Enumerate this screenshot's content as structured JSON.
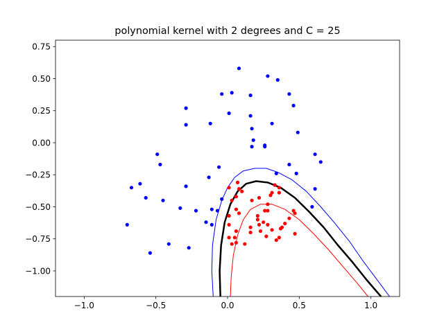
{
  "chart_data": {
    "type": "scatter",
    "title": "polynomial kernel with 2 degrees and C = 25",
    "xlabel": "",
    "ylabel": "",
    "xlim": [
      -1.2,
      1.2
    ],
    "ylim": [
      -1.2,
      0.8
    ],
    "x_ticks": [
      -1.0,
      -0.5,
      0.0,
      0.5,
      1.0
    ],
    "x_tick_labels": [
      "−1.0",
      "−0.5",
      "0.0",
      "0.5",
      "1.0"
    ],
    "y_ticks": [
      0.75,
      0.5,
      0.25,
      0.0,
      -0.25,
      -0.5,
      -0.75,
      -1.0
    ],
    "y_tick_labels": [
      "0.75",
      "0.50",
      "0.25",
      "0.00",
      "−0.25",
      "−0.50",
      "−0.75",
      "−1.00"
    ],
    "grid": false,
    "colors": {
      "class_1": "#0000ff",
      "class_2": "#ff0000",
      "boundary": "#000000"
    },
    "series": [
      {
        "color": "#0000ff",
        "points": [
          [
            0.08,
            0.58
          ],
          [
            0.28,
            0.52
          ],
          [
            0.35,
            0.49
          ],
          [
            -0.04,
            0.38
          ],
          [
            0.03,
            0.39
          ],
          [
            0.16,
            0.37
          ],
          [
            0.43,
            0.38
          ],
          [
            0.46,
            0.29
          ],
          [
            -0.29,
            0.27
          ],
          [
            0.01,
            0.23
          ],
          [
            0.16,
            0.21
          ],
          [
            -0.29,
            0.14
          ],
          [
            -0.12,
            0.15
          ],
          [
            0.31,
            0.15
          ],
          [
            0.17,
            0.11
          ],
          [
            0.49,
            0.08
          ],
          [
            0.18,
            0.02
          ],
          [
            0.26,
            -0.02
          ],
          [
            0.26,
            -0.03
          ],
          [
            0.17,
            -0.03
          ],
          [
            -0.49,
            -0.09
          ],
          [
            0.61,
            -0.09
          ],
          [
            -0.47,
            -0.17
          ],
          [
            0.43,
            -0.17
          ],
          [
            0.65,
            -0.15
          ],
          [
            -0.06,
            -0.19
          ],
          [
            0.34,
            -0.24
          ],
          [
            0.48,
            -0.24
          ],
          [
            -0.13,
            -0.27
          ],
          [
            -0.61,
            -0.32
          ],
          [
            -0.67,
            -0.35
          ],
          [
            -0.29,
            -0.34
          ],
          [
            0.61,
            -0.36
          ],
          [
            -0.57,
            -0.43
          ],
          [
            -0.45,
            -0.45
          ],
          [
            -0.04,
            -0.44
          ],
          [
            -0.33,
            -0.51
          ],
          [
            0.59,
            -0.5
          ],
          [
            -0.22,
            -0.53
          ],
          [
            -0.11,
            -0.52
          ],
          [
            -0.07,
            -0.53
          ],
          [
            -0.15,
            -0.62
          ],
          [
            -0.11,
            -0.64
          ],
          [
            -0.7,
            -0.64
          ],
          [
            -0.41,
            -0.79
          ],
          [
            -0.27,
            -0.82
          ],
          [
            -0.54,
            -0.86
          ]
        ]
      },
      {
        "color": "#ff0000",
        "points": [
          [
            0.07,
            -0.31
          ],
          [
            0.01,
            -0.35
          ],
          [
            0.08,
            -0.36
          ],
          [
            0.1,
            -0.38
          ],
          [
            0.33,
            -0.33
          ],
          [
            0.36,
            -0.35
          ],
          [
            0.31,
            -0.39
          ],
          [
            0.3,
            -0.41
          ],
          [
            0.36,
            -0.39
          ],
          [
            0.06,
            -0.42
          ],
          [
            0.03,
            -0.45
          ],
          [
            0.17,
            -0.45
          ],
          [
            0.22,
            -0.43
          ],
          [
            0.28,
            -0.48
          ],
          [
            0.06,
            -0.52
          ],
          [
            0.26,
            -0.53
          ],
          [
            0.28,
            -0.53
          ],
          [
            0.46,
            -0.53
          ],
          [
            0.47,
            -0.55
          ],
          [
            0.01,
            -0.57
          ],
          [
            0.08,
            -0.55
          ],
          [
            0.21,
            -0.57
          ],
          [
            0.21,
            -0.6
          ],
          [
            0.43,
            -0.59
          ],
          [
            0.25,
            -0.62
          ],
          [
            0.4,
            -0.63
          ],
          [
            0.01,
            -0.64
          ],
          [
            0.22,
            -0.64
          ],
          [
            0.28,
            -0.64
          ],
          [
            0.38,
            -0.66
          ],
          [
            0.06,
            -0.69
          ],
          [
            0.16,
            -0.66
          ],
          [
            0.37,
            -0.67
          ],
          [
            0.31,
            -0.68
          ],
          [
            0.23,
            -0.69
          ],
          [
            0.16,
            -0.7
          ],
          [
            0.47,
            -0.71
          ],
          [
            0.27,
            -0.73
          ],
          [
            0.36,
            -0.74
          ],
          [
            0.05,
            -0.74
          ],
          [
            0.01,
            -0.74
          ],
          [
            0.34,
            -0.76
          ],
          [
            0.06,
            -0.78
          ],
          [
            0.03,
            -0.79
          ],
          [
            0.12,
            -0.79
          ]
        ]
      }
    ],
    "curves": [
      {
        "color": "#0000ff",
        "style": "thin",
        "points": [
          [
            -0.1,
            -1.2
          ],
          [
            -0.11,
            -1.0
          ],
          [
            -0.105,
            -0.8
          ],
          [
            -0.08,
            -0.6
          ],
          [
            -0.04,
            -0.45
          ],
          [
            0.0,
            -0.35
          ],
          [
            0.05,
            -0.27
          ],
          [
            0.11,
            -0.22
          ],
          [
            0.19,
            -0.2
          ],
          [
            0.27,
            -0.2
          ],
          [
            0.35,
            -0.23
          ],
          [
            0.45,
            -0.29
          ],
          [
            0.55,
            -0.38
          ],
          [
            0.65,
            -0.5
          ],
          [
            0.75,
            -0.63
          ],
          [
            0.85,
            -0.77
          ],
          [
            0.95,
            -0.93
          ],
          [
            1.05,
            -1.08
          ],
          [
            1.13,
            -1.2
          ]
        ]
      },
      {
        "color": "#000000",
        "style": "bold",
        "points": [
          [
            -0.05,
            -1.2
          ],
          [
            -0.055,
            -1.0
          ],
          [
            -0.045,
            -0.8
          ],
          [
            -0.02,
            -0.62
          ],
          [
            0.02,
            -0.48
          ],
          [
            0.07,
            -0.38
          ],
          [
            0.13,
            -0.32
          ],
          [
            0.2,
            -0.3
          ],
          [
            0.28,
            -0.31
          ],
          [
            0.37,
            -0.35
          ],
          [
            0.47,
            -0.43
          ],
          [
            0.57,
            -0.54
          ],
          [
            0.67,
            -0.66
          ],
          [
            0.77,
            -0.8
          ],
          [
            0.87,
            -0.93
          ],
          [
            0.97,
            -1.07
          ],
          [
            1.07,
            -1.2
          ]
        ]
      },
      {
        "color": "#ff0000",
        "style": "thin",
        "points": [
          [
            0.02,
            -1.2
          ],
          [
            0.025,
            -1.05
          ],
          [
            0.04,
            -0.88
          ],
          [
            0.07,
            -0.72
          ],
          [
            0.11,
            -0.6
          ],
          [
            0.16,
            -0.52
          ],
          [
            0.23,
            -0.48
          ],
          [
            0.31,
            -0.48
          ],
          [
            0.4,
            -0.52
          ],
          [
            0.5,
            -0.6
          ],
          [
            0.6,
            -0.71
          ],
          [
            0.7,
            -0.83
          ],
          [
            0.8,
            -0.96
          ],
          [
            0.9,
            -1.09
          ],
          [
            0.98,
            -1.2
          ]
        ]
      }
    ]
  }
}
